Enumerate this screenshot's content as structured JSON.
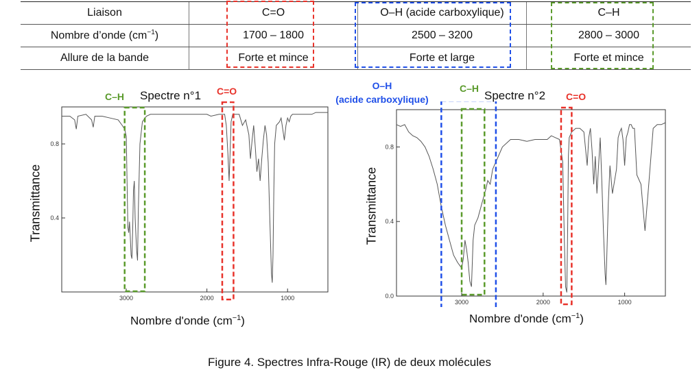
{
  "table": {
    "rows": [
      [
        "Liaison",
        "C=O",
        "O–H (acide carboxylique)",
        "C–H"
      ],
      [
        "Nombre d’onde (cm",
        "1700 – 1800",
        "2500 – 3200",
        "2800 – 3000"
      ],
      [
        "Allure de la bande",
        "Forte et mince",
        "Forte et large",
        "Forte et mince"
      ]
    ],
    "unit_superscript": "−1",
    "unit_close": ")"
  },
  "colors": {
    "co": "#e8322a",
    "oh": "#1f4fe8",
    "ch": "#5a9a2b",
    "curve": "#555555"
  },
  "caption": "Figure 4. Spectres Infra-Rouge (IR) de deux molécules",
  "chart_data": [
    {
      "type": "line",
      "title": "Spectre n°1",
      "xlabel": "Nombre d'onde (cm−1)",
      "ylabel": "Transmittance",
      "x_reversed": true,
      "xlim": [
        3800,
        500
      ],
      "ylim": [
        0.0,
        1.0
      ],
      "xticks": [
        3000,
        2000,
        1000
      ],
      "yticks": [
        0.4,
        0.8
      ],
      "annotations": [
        {
          "label": "C–H",
          "color": "ch"
        },
        {
          "label": "C=O",
          "color": "co"
        }
      ],
      "series": [
        {
          "x": [
            3800,
            3700,
            3640,
            3620,
            3600,
            3500,
            3430,
            3410,
            3390,
            3300,
            3200,
            3100,
            3050,
            3020,
            3000,
            2990,
            2980,
            2970,
            2960,
            2950,
            2940,
            2930,
            2920,
            2910,
            2900,
            2890,
            2880,
            2870,
            2860,
            2850,
            2830,
            2800,
            2750,
            2700,
            2600,
            2500,
            2400,
            2300,
            2200,
            2100,
            2000,
            1950,
            1850,
            1800,
            1780,
            1760,
            1740,
            1725,
            1710,
            1700,
            1680,
            1650,
            1600,
            1560,
            1520,
            1480,
            1460,
            1440,
            1420,
            1400,
            1380,
            1360,
            1340,
            1320,
            1300,
            1280,
            1260,
            1240,
            1220,
            1200,
            1190,
            1180,
            1170,
            1160,
            1140,
            1100,
            1080,
            1060,
            1040,
            1020,
            1000,
            980,
            960,
            940,
            920,
            900,
            880,
            850,
            800,
            750,
            700,
            650,
            600,
            550,
            500
          ],
          "y": [
            0.95,
            0.95,
            0.93,
            0.88,
            0.95,
            0.96,
            0.93,
            0.89,
            0.95,
            0.95,
            0.94,
            0.93,
            0.9,
            0.88,
            0.84,
            0.6,
            0.35,
            0.32,
            0.38,
            0.3,
            0.2,
            0.18,
            0.35,
            0.55,
            0.6,
            0.4,
            0.3,
            0.22,
            0.17,
            0.45,
            0.8,
            0.92,
            0.95,
            0.96,
            0.96,
            0.96,
            0.96,
            0.96,
            0.96,
            0.96,
            0.96,
            0.95,
            0.96,
            0.96,
            0.96,
            0.9,
            0.75,
            0.6,
            0.78,
            0.92,
            0.96,
            0.96,
            0.96,
            0.9,
            0.93,
            0.85,
            0.72,
            0.82,
            0.9,
            0.78,
            0.65,
            0.72,
            0.6,
            0.72,
            0.82,
            0.9,
            0.85,
            0.7,
            0.4,
            0.1,
            0.05,
            0.2,
            0.55,
            0.8,
            0.9,
            0.92,
            0.94,
            0.88,
            0.82,
            0.9,
            0.94,
            0.92,
            0.95,
            0.96,
            0.96,
            0.96,
            0.96,
            0.96,
            0.96,
            0.96,
            0.96,
            0.97,
            0.97,
            0.97,
            0.97
          ]
        }
      ]
    },
    {
      "type": "line",
      "title": "Spectre n°2",
      "xlabel": "Nombre d'onde (cm−1)",
      "ylabel": "Transmittance",
      "x_reversed": true,
      "xlim": [
        3800,
        500
      ],
      "ylim": [
        0.0,
        1.0
      ],
      "xticks": [
        3000,
        2000,
        1000
      ],
      "yticks": [
        0.0,
        0.4,
        0.8
      ],
      "annotations": [
        {
          "label": "O–H",
          "sublabel": "(acide carboxylique)",
          "color": "oh"
        },
        {
          "label": "C–H",
          "color": "ch"
        },
        {
          "label": "C=O",
          "color": "co"
        }
      ],
      "series": [
        {
          "x": [
            3800,
            3750,
            3700,
            3650,
            3600,
            3550,
            3500,
            3450,
            3400,
            3350,
            3300,
            3250,
            3200,
            3150,
            3100,
            3050,
            3000,
            2980,
            2960,
            2940,
            2920,
            2900,
            2880,
            2860,
            2840,
            2800,
            2750,
            2700,
            2680,
            2650,
            2620,
            2600,
            2550,
            2500,
            2400,
            2300,
            2200,
            2100,
            2000,
            1950,
            1900,
            1850,
            1800,
            1760,
            1740,
            1725,
            1710,
            1700,
            1690,
            1680,
            1650,
            1600,
            1550,
            1500,
            1460,
            1440,
            1420,
            1400,
            1380,
            1360,
            1340,
            1320,
            1300,
            1280,
            1260,
            1240,
            1230,
            1220,
            1200,
            1180,
            1150,
            1100,
            1080,
            1060,
            1040,
            1020,
            1000,
            980,
            960,
            940,
            920,
            900,
            880,
            850,
            800,
            750,
            700,
            650,
            600,
            550,
            500
          ],
          "y": [
            0.92,
            0.91,
            0.92,
            0.88,
            0.86,
            0.85,
            0.83,
            0.8,
            0.75,
            0.68,
            0.6,
            0.48,
            0.38,
            0.3,
            0.22,
            0.18,
            0.15,
            0.2,
            0.3,
            0.25,
            0.18,
            0.08,
            0.05,
            0.3,
            0.38,
            0.42,
            0.5,
            0.58,
            0.62,
            0.6,
            0.68,
            0.7,
            0.75,
            0.8,
            0.84,
            0.84,
            0.83,
            0.84,
            0.84,
            0.84,
            0.86,
            0.85,
            0.84,
            0.72,
            0.3,
            0.05,
            0.02,
            0.35,
            0.75,
            0.85,
            0.88,
            0.9,
            0.9,
            0.88,
            0.7,
            0.85,
            0.9,
            0.78,
            0.6,
            0.75,
            0.55,
            0.7,
            0.85,
            0.62,
            0.35,
            0.12,
            0.06,
            0.2,
            0.5,
            0.7,
            0.55,
            0.68,
            0.85,
            0.88,
            0.9,
            0.84,
            0.7,
            0.85,
            0.88,
            0.92,
            0.92,
            0.9,
            0.9,
            0.65,
            0.6,
            0.35,
            0.62,
            0.9,
            0.92,
            0.92,
            0.93
          ]
        }
      ]
    }
  ]
}
